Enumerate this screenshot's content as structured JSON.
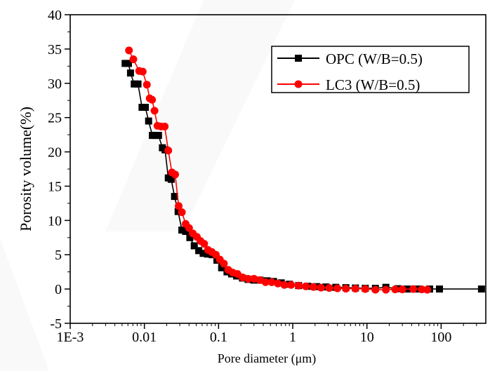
{
  "chart_data": {
    "type": "scatter",
    "title": "",
    "xlabel": "Pore diameter (μm)",
    "ylabel": "Porosity volume(%)",
    "x_scale": "log",
    "xlim": [
      0.001,
      400
    ],
    "ylim": [
      -5,
      40
    ],
    "x_ticks": [
      {
        "value": 0.001,
        "label": "1E-3"
      },
      {
        "value": 0.01,
        "label": "0.01"
      },
      {
        "value": 0.1,
        "label": "0.1"
      },
      {
        "value": 1,
        "label": "1"
      },
      {
        "value": 10,
        "label": "10"
      },
      {
        "value": 100,
        "label": "100"
      }
    ],
    "y_ticks": [
      {
        "value": -5,
        "label": "-5"
      },
      {
        "value": 0,
        "label": "0"
      },
      {
        "value": 5,
        "label": "5"
      },
      {
        "value": 10,
        "label": "10"
      },
      {
        "value": 15,
        "label": "15"
      },
      {
        "value": 20,
        "label": "20"
      },
      {
        "value": 25,
        "label": "25"
      },
      {
        "value": 30,
        "label": "30"
      },
      {
        "value": 35,
        "label": "35"
      },
      {
        "value": 40,
        "label": "40"
      }
    ],
    "grid": false,
    "legend_position": "top-right",
    "series": [
      {
        "name": "OPC (W/B=0.5)",
        "color": "#000000",
        "marker": "square",
        "x": [
          0.0055,
          0.0061,
          0.0065,
          0.0073,
          0.0082,
          0.0093,
          0.0103,
          0.0114,
          0.0128,
          0.014,
          0.0155,
          0.0175,
          0.019,
          0.021,
          0.023,
          0.0255,
          0.0285,
          0.032,
          0.036,
          0.041,
          0.047,
          0.054,
          0.062,
          0.071,
          0.082,
          0.095,
          0.11,
          0.13,
          0.15,
          0.175,
          0.21,
          0.25,
          0.3,
          0.36,
          0.45,
          0.55,
          0.7,
          0.9,
          1.2,
          1.6,
          2.1,
          2.8,
          3.8,
          5.2,
          7.0,
          9.5,
          13.0,
          18.0,
          26.0,
          35.0,
          50.0,
          70.0,
          95.0,
          350.0
        ],
        "y": [
          32.9,
          32.9,
          31.5,
          29.9,
          29.9,
          26.5,
          26.5,
          24.5,
          22.4,
          22.4,
          22.4,
          20.6,
          20.3,
          16.2,
          16.0,
          13.5,
          11.3,
          8.6,
          8.4,
          7.5,
          6.3,
          5.6,
          5.2,
          5.1,
          5.0,
          4.2,
          3.1,
          2.5,
          2.2,
          1.9,
          1.6,
          1.4,
          1.3,
          1.3,
          1.2,
          1.1,
          0.9,
          0.7,
          0.5,
          0.4,
          0.35,
          0.3,
          0.25,
          0.2,
          0.15,
          0.1,
          0.1,
          0.25,
          0.05,
          0.0,
          0.0,
          0.0,
          0.0,
          0.0
        ]
      },
      {
        "name": "LC3 (W/B=0.5)",
        "color": "#ff0000",
        "marker": "circle",
        "x": [
          0.0062,
          0.0071,
          0.0085,
          0.0095,
          0.0108,
          0.0118,
          0.0127,
          0.0137,
          0.015,
          0.0168,
          0.0188,
          0.021,
          0.0235,
          0.026,
          0.029,
          0.032,
          0.036,
          0.04,
          0.045,
          0.051,
          0.057,
          0.064,
          0.072,
          0.081,
          0.092,
          0.104,
          0.118,
          0.135,
          0.155,
          0.18,
          0.21,
          0.25,
          0.3,
          0.36,
          0.43,
          0.52,
          0.63,
          0.77,
          0.95,
          1.2,
          1.5,
          1.9,
          2.4,
          3.1,
          4.0,
          5.2,
          7.0,
          9.5,
          13.0,
          18.0,
          24.0,
          30.0,
          42.0,
          55.0,
          65.0
        ],
        "y": [
          34.8,
          33.5,
          31.8,
          31.7,
          29.8,
          27.8,
          27.6,
          26.0,
          23.8,
          23.7,
          23.7,
          20.2,
          17.0,
          16.7,
          12.1,
          11.2,
          9.5,
          8.9,
          8.1,
          7.6,
          7.0,
          6.6,
          5.7,
          5.4,
          5.0,
          4.3,
          3.7,
          2.8,
          2.4,
          2.2,
          1.7,
          1.5,
          1.5,
          1.3,
          1.0,
          1.0,
          0.8,
          0.6,
          0.6,
          0.5,
          0.4,
          0.3,
          0.2,
          0.15,
          0.1,
          0.05,
          0.05,
          0.0,
          -0.1,
          -0.1,
          -0.05,
          -0.05,
          0.0,
          -0.05,
          -0.1
        ]
      }
    ]
  }
}
